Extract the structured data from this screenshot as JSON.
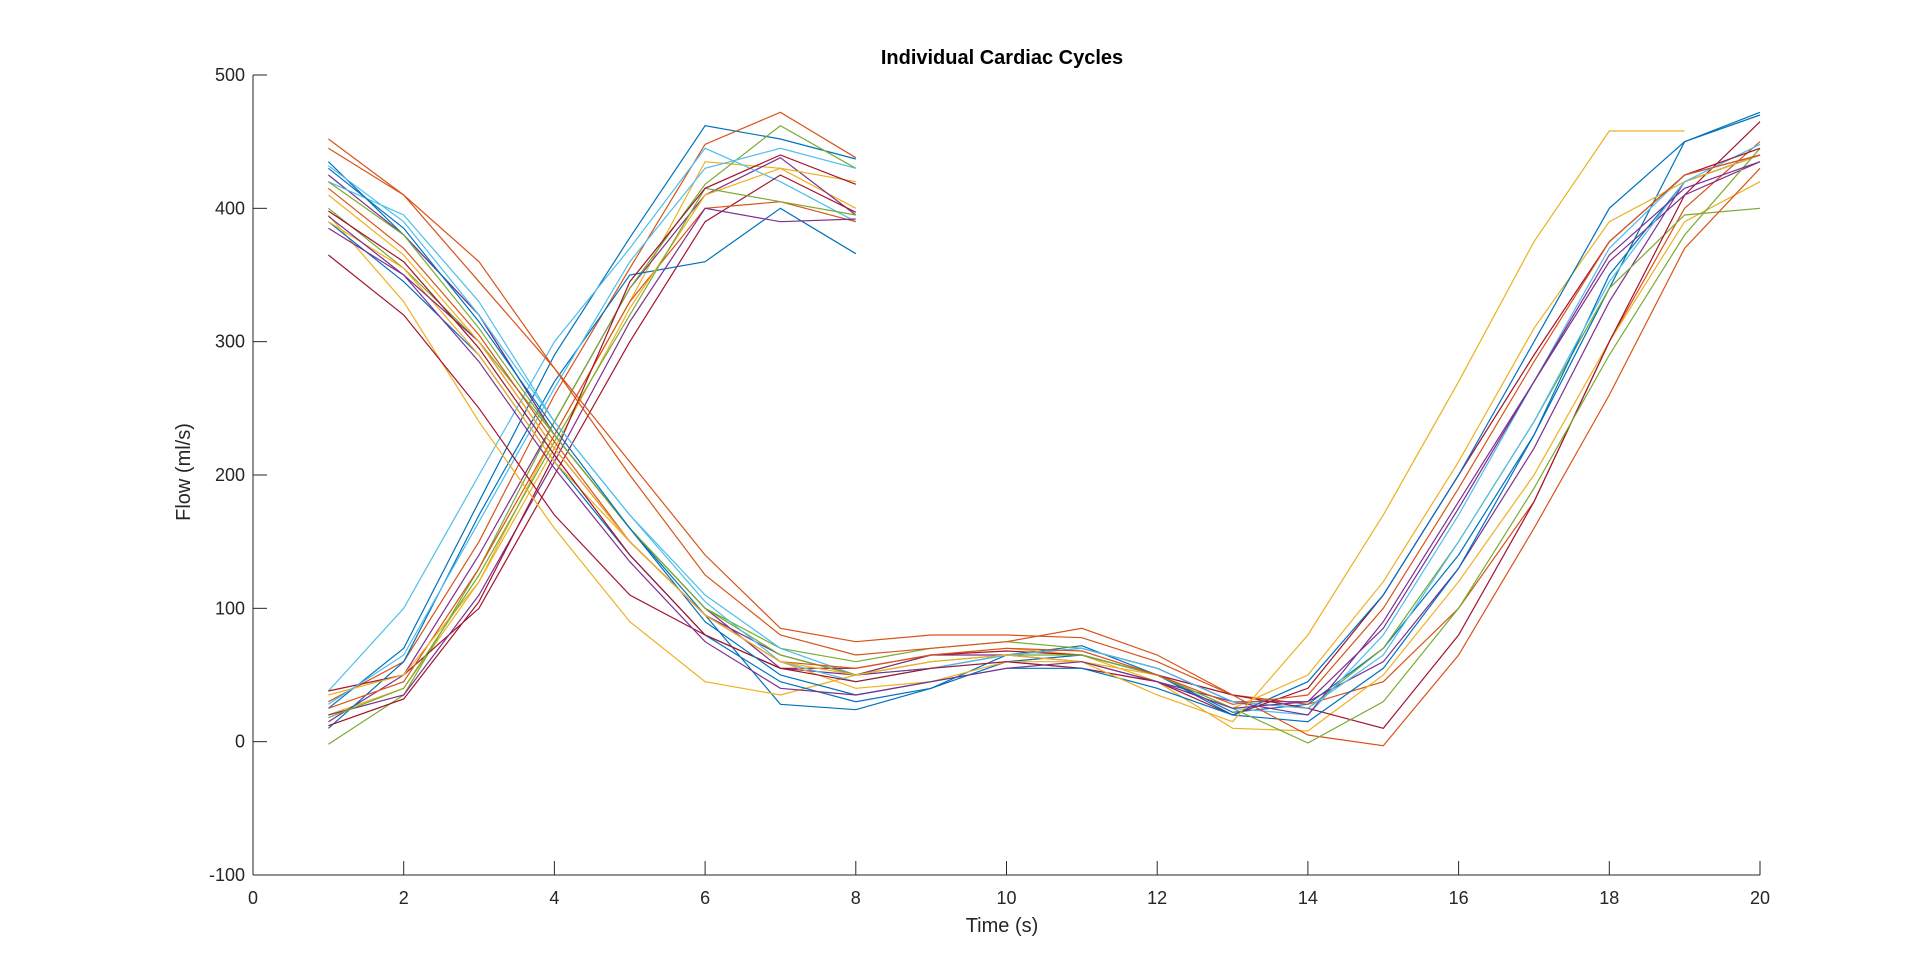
{
  "chart_data": {
    "type": "line",
    "title": "Individual Cardiac Cycles",
    "xlabel": "Time (s)",
    "ylabel": "Flow (ml/s)",
    "xlim": [
      0,
      20
    ],
    "ylim": [
      -100,
      500
    ],
    "xticks": [
      0,
      2,
      4,
      6,
      8,
      10,
      12,
      14,
      16,
      18,
      20
    ],
    "yticks": [
      -100,
      0,
      100,
      200,
      300,
      400,
      500
    ],
    "grid": false,
    "legend": "none",
    "colors": [
      "#0072BD",
      "#D95319",
      "#EDB120",
      "#7E2F8E",
      "#77AC30",
      "#4DBEEE",
      "#A2142F"
    ],
    "series": [
      {
        "x": [
          1,
          2,
          3,
          4,
          5,
          6,
          7,
          8
        ],
        "y": [
          25,
          70,
          180,
          290,
          378,
          462,
          452,
          437
        ]
      },
      {
        "x": [
          1,
          2,
          3,
          4,
          5,
          6,
          7,
          8
        ],
        "y": [
          30,
          60,
          150,
          260,
          355,
          448,
          472,
          438
        ]
      },
      {
        "x": [
          1,
          2,
          3,
          4,
          5,
          6,
          7,
          8
        ],
        "y": [
          20,
          40,
          120,
          230,
          330,
          435,
          430,
          400
        ]
      },
      {
        "x": [
          1,
          2,
          3,
          4,
          5,
          6,
          7,
          8
        ],
        "y": [
          15,
          50,
          140,
          240,
          340,
          410,
          438,
          395
        ]
      },
      {
        "x": [
          1,
          2,
          3,
          4,
          5,
          6,
          7,
          8
        ],
        "y": [
          -2,
          35,
          130,
          240,
          340,
          418,
          462,
          430
        ]
      },
      {
        "x": [
          1,
          2,
          3,
          4,
          5,
          6,
          7,
          8
        ],
        "y": [
          38,
          100,
          200,
          300,
          370,
          445,
          420,
          390
        ]
      },
      {
        "x": [
          1,
          2,
          3,
          4,
          5,
          6,
          7,
          8
        ],
        "y": [
          38,
          50,
          100,
          200,
          300,
          390,
          425,
          397
        ]
      },
      {
        "x": [
          1,
          2,
          3,
          4,
          5,
          6,
          7,
          8
        ],
        "y": [
          10,
          60,
          170,
          270,
          350,
          360,
          400,
          366
        ]
      },
      {
        "x": [
          1,
          2,
          3,
          4,
          5,
          6,
          7,
          8
        ],
        "y": [
          25,
          45,
          130,
          230,
          330,
          400,
          405,
          390
        ]
      },
      {
        "x": [
          1,
          2,
          3,
          4,
          5,
          6,
          7,
          8
        ],
        "y": [
          35,
          50,
          120,
          220,
          325,
          410,
          430,
          420
        ]
      },
      {
        "x": [
          1,
          2,
          3,
          4,
          5,
          6,
          7,
          8
        ],
        "y": [
          20,
          35,
          110,
          210,
          315,
          400,
          390,
          392
        ]
      },
      {
        "x": [
          1,
          2,
          3,
          4,
          5,
          6,
          7,
          8
        ],
        "y": [
          18,
          40,
          125,
          225,
          320,
          415,
          405,
          395
        ]
      },
      {
        "x": [
          1,
          2,
          3,
          4,
          5,
          6,
          7,
          8
        ],
        "y": [
          28,
          65,
          165,
          265,
          360,
          430,
          445,
          430
        ]
      },
      {
        "x": [
          1,
          2,
          3,
          4,
          5,
          6,
          7,
          8
        ],
        "y": [
          12,
          32,
          105,
          215,
          345,
          415,
          440,
          418
        ]
      },
      {
        "x": [
          1,
          2,
          3,
          4,
          5,
          6,
          7,
          8,
          9,
          10,
          11,
          12,
          13,
          14,
          15,
          16,
          17,
          18,
          19,
          20
        ],
        "y": [
          435,
          380,
          320,
          230,
          160,
          95,
          28,
          24,
          40,
          65,
          72,
          50,
          22,
          28,
          70,
          140,
          230,
          340,
          450,
          472
        ]
      },
      {
        "x": [
          1,
          2,
          3,
          4,
          5,
          6,
          7,
          8,
          9,
          10,
          11,
          12,
          13,
          14,
          15,
          16,
          17,
          18,
          19,
          20
        ],
        "y": [
          452,
          410,
          345,
          280,
          210,
          140,
          85,
          75,
          80,
          80,
          78,
          60,
          35,
          28,
          45,
          100,
          180,
          300,
          400,
          450
        ]
      },
      {
        "x": [
          1,
          2,
          3,
          4,
          5,
          6,
          7,
          8,
          9,
          10,
          11,
          12,
          13,
          14,
          15,
          16,
          17,
          18,
          19,
          20
        ],
        "y": [
          395,
          330,
          240,
          160,
          90,
          45,
          35,
          50,
          65,
          70,
          65,
          45,
          10,
          8,
          50,
          120,
          200,
          300,
          390,
          420
        ]
      },
      {
        "x": [
          1,
          2,
          3,
          4,
          5,
          6,
          7,
          8,
          9,
          10,
          11,
          12,
          13,
          14,
          15,
          16,
          17,
          18,
          19,
          20
        ],
        "y": [
          425,
          380,
          320,
          230,
          160,
          100,
          55,
          50,
          65,
          65,
          60,
          45,
          30,
          30,
          60,
          130,
          220,
          330,
          420,
          440
        ]
      },
      {
        "x": [
          1,
          2,
          3,
          4,
          5,
          6,
          7,
          8,
          9,
          10,
          11,
          12,
          13,
          14,
          15,
          16,
          17,
          18,
          19,
          20
        ],
        "y": [
          400,
          355,
          300,
          230,
          160,
          100,
          70,
          60,
          70,
          75,
          70,
          55,
          30,
          25,
          70,
          150,
          240,
          340,
          395,
          400
        ]
      },
      {
        "x": [
          1,
          2,
          3,
          4,
          5,
          6,
          7,
          8,
          9,
          10,
          11,
          12,
          13,
          14,
          15,
          16,
          17,
          18,
          19,
          20
        ],
        "y": [
          420,
          395,
          330,
          240,
          170,
          110,
          70,
          50,
          55,
          60,
          55,
          45,
          25,
          20,
          80,
          170,
          270,
          370,
          425,
          440
        ]
      },
      {
        "x": [
          1,
          2,
          3,
          4,
          5,
          6,
          7,
          8,
          9,
          10,
          11,
          12,
          13,
          14,
          15,
          16,
          17,
          18,
          19,
          20
        ],
        "y": [
          365,
          320,
          250,
          170,
          110,
          80,
          55,
          55,
          65,
          68,
          65,
          50,
          35,
          25,
          10,
          80,
          180,
          300,
          410,
          465
        ]
      },
      {
        "x": [
          1,
          2,
          3,
          4,
          5,
          6,
          7,
          8,
          9,
          10,
          11,
          12,
          13,
          14,
          15,
          16,
          17,
          18,
          19,
          20
        ],
        "y": [
          390,
          345,
          290,
          210,
          140,
          80,
          45,
          30,
          40,
          60,
          65,
          50,
          20,
          15,
          55,
          130,
          230,
          350,
          420,
          440
        ]
      },
      {
        "x": [
          1,
          2,
          3,
          4,
          5,
          6,
          7,
          8,
          9,
          10,
          11,
          12,
          13,
          14,
          15,
          16,
          17,
          18,
          19,
          20
        ],
        "y": [
          445,
          410,
          360,
          280,
          200,
          125,
          80,
          65,
          70,
          75,
          85,
          65,
          35,
          5,
          -3,
          65,
          160,
          260,
          370,
          430
        ]
      },
      {
        "x": [
          1,
          2,
          3,
          4,
          5,
          6,
          7,
          8,
          9,
          10,
          11,
          12,
          13,
          14,
          15,
          16,
          17,
          18,
          19,
          20
        ],
        "y": [
          390,
          355,
          290,
          210,
          150,
          95,
          60,
          40,
          45,
          60,
          60,
          50,
          25,
          50,
          120,
          210,
          310,
          390,
          420,
          440
        ]
      },
      {
        "x": [
          1,
          2,
          3,
          4,
          5,
          6,
          7,
          8,
          9,
          10,
          11,
          12,
          13,
          14,
          15,
          16,
          17,
          18,
          19,
          20
        ],
        "y": [
          385,
          350,
          300,
          220,
          150,
          95,
          65,
          50,
          55,
          65,
          70,
          55,
          30,
          20,
          90,
          180,
          270,
          360,
          410,
          435
        ]
      },
      {
        "x": [
          1,
          2,
          3,
          4,
          5,
          6,
          7,
          8,
          9,
          10,
          11,
          12,
          13,
          14,
          15,
          16,
          17,
          18,
          19,
          20
        ],
        "y": [
          420,
          380,
          310,
          230,
          160,
          100,
          65,
          50,
          60,
          65,
          65,
          50,
          25,
          -1,
          30,
          100,
          190,
          290,
          380,
          445
        ]
      },
      {
        "x": [
          1,
          2,
          3,
          4,
          5,
          6,
          7,
          8,
          9,
          10,
          11,
          12,
          13,
          14,
          15,
          16,
          17,
          18,
          19,
          20
        ],
        "y": [
          432,
          390,
          320,
          240,
          170,
          105,
          60,
          45,
          55,
          65,
          70,
          55,
          30,
          25,
          65,
          150,
          240,
          345,
          420,
          448
        ]
      },
      {
        "x": [
          1,
          2,
          3,
          4,
          5,
          6,
          7,
          8,
          9,
          10,
          11,
          12,
          13,
          14,
          15,
          16,
          17,
          18,
          19,
          20
        ],
        "y": [
          398,
          360,
          295,
          215,
          140,
          80,
          55,
          45,
          55,
          60,
          55,
          45,
          20,
          40,
          110,
          200,
          290,
          375,
          425,
          445
        ]
      },
      {
        "x": [
          1,
          2,
          3,
          4,
          5,
          6,
          7,
          8,
          9,
          10,
          11,
          12,
          13,
          14,
          15,
          16,
          17,
          18,
          19,
          20
        ],
        "y": [
          430,
          385,
          315,
          235,
          160,
          90,
          50,
          35,
          45,
          55,
          55,
          40,
          20,
          45,
          110,
          200,
          300,
          400,
          450,
          470
        ]
      },
      {
        "x": [
          1,
          2,
          3,
          4,
          5,
          6,
          7,
          8,
          9,
          10,
          11,
          12,
          13,
          14,
          15,
          16,
          17,
          18,
          19,
          20
        ],
        "y": [
          415,
          370,
          305,
          225,
          150,
          95,
          60,
          55,
          65,
          70,
          68,
          50,
          28,
          35,
          100,
          190,
          285,
          375,
          425,
          440
        ]
      },
      {
        "x": [
          1,
          2,
          3,
          4,
          5,
          6,
          7,
          8,
          9,
          10,
          11,
          12,
          13,
          14,
          15,
          16,
          17,
          18,
          19
        ],
        "y": [
          410,
          365,
          300,
          220,
          150,
          95,
          60,
          50,
          60,
          65,
          60,
          35,
          15,
          80,
          170,
          270,
          375,
          458,
          458
        ]
      },
      {
        "x": [
          1,
          2,
          3,
          4,
          5,
          6,
          7,
          8,
          9,
          10,
          11,
          12,
          13,
          14,
          15,
          16,
          17,
          18,
          19,
          20
        ],
        "y": [
          394,
          350,
          285,
          205,
          135,
          75,
          40,
          35,
          45,
          55,
          60,
          45,
          25,
          30,
          85,
          175,
          270,
          365,
          415,
          435
        ]
      }
    ]
  }
}
